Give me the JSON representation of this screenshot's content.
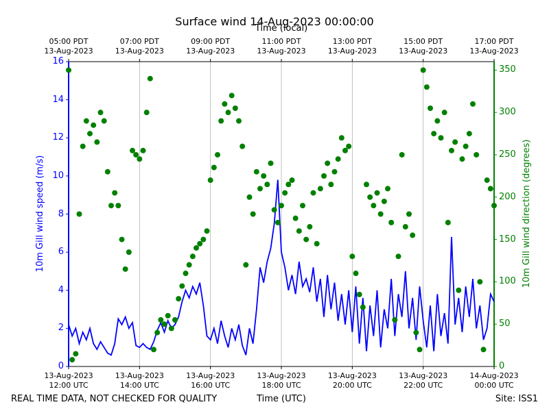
{
  "chart_data": {
    "type": "line",
    "title": "Surface wind 14-Aug-2023 00:00:00",
    "x2label": "Time (local)",
    "xlabel": "Time (UTC)",
    "ylabel": "10m Gill wind speed (m/s)",
    "y2label": "10m Gill wind direction (degrees)",
    "footer_left": "REAL TIME DATA, NOT CHECKED FOR QUALITY",
    "footer_right": "Site: ISS1",
    "xlim": [
      12,
      24
    ],
    "xticks": [
      {
        "value": 12,
        "label": "13-Aug-2023\n12:00 UTC"
      },
      {
        "value": 14,
        "label": "13-Aug-2023\n14:00 UTC"
      },
      {
        "value": 16,
        "label": "13-Aug-2023\n16:00 UTC"
      },
      {
        "value": 18,
        "label": "13-Aug-2023\n18:00 UTC"
      },
      {
        "value": 20,
        "label": "13-Aug-2023\n20:00 UTC"
      },
      {
        "value": 22,
        "label": "13-Aug-2023\n22:00 UTC"
      },
      {
        "value": 24,
        "label": "14-Aug-2023\n00:00 UTC"
      }
    ],
    "x2ticks": [
      {
        "value": 12,
        "label": "05:00 PDT\n13-Aug-2023"
      },
      {
        "value": 14,
        "label": "07:00 PDT\n13-Aug-2023"
      },
      {
        "value": 16,
        "label": "09:00 PDT\n13-Aug-2023"
      },
      {
        "value": 18,
        "label": "11:00 PDT\n13-Aug-2023"
      },
      {
        "value": 20,
        "label": "13:00 PDT\n13-Aug-2023"
      },
      {
        "value": 22,
        "label": "15:00 PDT\n13-Aug-2023"
      },
      {
        "value": 24,
        "label": "17:00 PDT\n13-Aug-2023"
      }
    ],
    "ylim": [
      0,
      16
    ],
    "yticks": [
      0,
      2,
      4,
      6,
      8,
      10,
      12,
      14,
      16
    ],
    "y2lim": [
      0,
      360
    ],
    "y2ticks": [
      0,
      50,
      100,
      150,
      200,
      250,
      300,
      350
    ],
    "grid": true,
    "x": [
      12.0,
      12.1,
      12.2,
      12.3,
      12.4,
      12.5,
      12.6,
      12.7,
      12.8,
      12.9,
      13.0,
      13.1,
      13.2,
      13.3,
      13.4,
      13.5,
      13.6,
      13.7,
      13.8,
      13.9,
      14.0,
      14.1,
      14.2,
      14.3,
      14.4,
      14.5,
      14.6,
      14.7,
      14.8,
      14.9,
      15.0,
      15.1,
      15.2,
      15.3,
      15.4,
      15.5,
      15.6,
      15.7,
      15.8,
      15.9,
      16.0,
      16.1,
      16.2,
      16.3,
      16.4,
      16.5,
      16.6,
      16.7,
      16.8,
      16.9,
      17.0,
      17.1,
      17.2,
      17.3,
      17.4,
      17.5,
      17.6,
      17.7,
      17.8,
      17.9,
      18.0,
      18.1,
      18.2,
      18.3,
      18.4,
      18.5,
      18.6,
      18.7,
      18.8,
      18.9,
      19.0,
      19.1,
      19.2,
      19.3,
      19.4,
      19.5,
      19.6,
      19.7,
      19.8,
      19.9,
      20.0,
      20.1,
      20.2,
      20.3,
      20.4,
      20.5,
      20.6,
      20.7,
      20.8,
      20.9,
      21.0,
      21.1,
      21.2,
      21.3,
      21.4,
      21.5,
      21.6,
      21.7,
      21.8,
      21.9,
      22.0,
      22.1,
      22.2,
      22.3,
      22.4,
      22.5,
      22.6,
      22.7,
      22.8,
      22.9,
      23.0,
      23.1,
      23.2,
      23.3,
      23.4,
      23.5,
      23.6,
      23.7,
      23.8,
      23.9,
      24.0
    ],
    "series": [
      {
        "type": "line",
        "color": "#0000ff",
        "values": [
          2.2,
          1.6,
          2.0,
          1.2,
          1.8,
          1.4,
          2.0,
          1.2,
          0.9,
          1.3,
          1.0,
          0.7,
          0.6,
          1.2,
          2.5,
          2.2,
          2.6,
          2.0,
          2.3,
          1.1,
          1.0,
          1.2,
          1.0,
          0.9,
          1.3,
          1.9,
          2.3,
          1.8,
          2.4,
          2.0,
          2.2,
          2.6,
          3.4,
          4.0,
          3.6,
          4.2,
          3.8,
          4.4,
          3.2,
          1.6,
          1.4,
          2.0,
          1.2,
          2.4,
          1.6,
          1.0,
          2.0,
          1.4,
          2.2,
          1.1,
          0.6,
          2.0,
          1.2,
          3.0,
          5.2,
          4.4,
          5.5,
          6.2,
          7.5,
          9.8,
          6.0,
          5.2,
          4.0,
          4.8,
          3.8,
          5.5,
          4.2,
          4.6,
          3.9,
          5.2,
          3.4,
          4.6,
          2.6,
          4.8,
          3.0,
          4.4,
          2.4,
          3.8,
          2.2,
          4.0,
          1.8,
          4.2,
          1.2,
          3.6,
          0.8,
          3.2,
          1.6,
          4.0,
          1.0,
          3.0,
          2.0,
          4.6,
          1.6,
          3.8,
          2.6,
          5.0,
          2.0,
          3.6,
          1.4,
          4.2,
          2.4,
          1.0,
          3.2,
          0.8,
          3.8,
          1.6,
          2.8,
          1.2,
          6.8,
          2.2,
          3.6,
          1.8,
          4.2,
          2.6,
          4.6,
          2.0,
          3.2,
          1.4,
          2.0,
          3.8,
          3.4
        ]
      },
      {
        "type": "scatter",
        "axis": "y2",
        "color": "#008000",
        "values": [
          350,
          8,
          15,
          180,
          260,
          290,
          275,
          285,
          265,
          300,
          290,
          230,
          190,
          205,
          190,
          150,
          115,
          135,
          255,
          250,
          245,
          255,
          300,
          340,
          20,
          40,
          55,
          50,
          60,
          45,
          55,
          80,
          95,
          110,
          120,
          130,
          140,
          145,
          150,
          160,
          220,
          235,
          250,
          290,
          310,
          300,
          320,
          305,
          290,
          260,
          120,
          200,
          180,
          230,
          210,
          225,
          215,
          240,
          185,
          170,
          190,
          205,
          215,
          220,
          175,
          160,
          190,
          150,
          165,
          205,
          145,
          210,
          225,
          240,
          215,
          230,
          245,
          270,
          255,
          260,
          130,
          110,
          85,
          70,
          215,
          200,
          190,
          205,
          180,
          195,
          210,
          170,
          55,
          130,
          250,
          165,
          180,
          155,
          40,
          20,
          350,
          330,
          305,
          275,
          290,
          270,
          300,
          170,
          255,
          265,
          90,
          245,
          260,
          275,
          310,
          250,
          100,
          20,
          220,
          210,
          190
        ]
      }
    ]
  }
}
